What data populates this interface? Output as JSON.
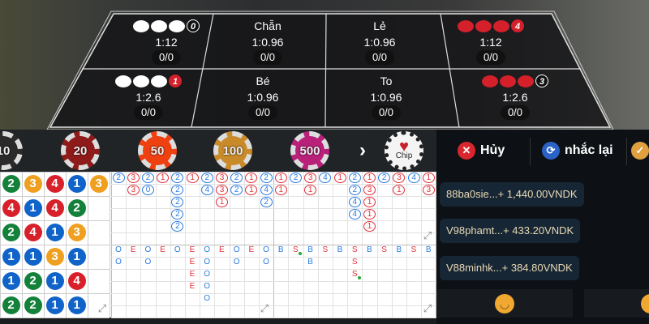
{
  "bet_table": {
    "top": [
      {
        "label": "",
        "dots": [
          "w",
          "w",
          "w"
        ],
        "num": "0",
        "num_color": "white",
        "odds": "1:12",
        "count": "0/0"
      },
      {
        "label": "Chẵn",
        "odds": "1:0.96",
        "count": "0/0"
      },
      {
        "label": "Lẻ",
        "odds": "1:0.96",
        "count": "0/0"
      },
      {
        "label": "",
        "dots": [
          "r",
          "r",
          "r"
        ],
        "num": "4",
        "num_color": "red",
        "odds": "1:12",
        "count": "0/0"
      }
    ],
    "bottom": [
      {
        "label": "",
        "dots": [
          "w",
          "w",
          "w"
        ],
        "num": "1",
        "num_color": "red",
        "odds": "1:2.6",
        "count": "0/0"
      },
      {
        "label": "Bé",
        "odds": "1:0.96",
        "count": "0/0"
      },
      {
        "label": "To",
        "odds": "1:0.96",
        "count": "0/0"
      },
      {
        "label": "",
        "dots": [
          "r",
          "r",
          "r"
        ],
        "num": "3",
        "num_color": "white",
        "odds": "1:2.6",
        "count": "0/0"
      }
    ]
  },
  "chips": [
    {
      "value": "10",
      "color": "#2a2a2a"
    },
    {
      "value": "20",
      "color": "#8e1a1a"
    },
    {
      "value": "50",
      "color": "#ee4010"
    },
    {
      "value": "100",
      "color": "#c98a2a"
    },
    {
      "value": "500",
      "color": "#b8207a"
    }
  ],
  "chip_menu": {
    "label": "Chip",
    "icon": "heart-chip-icon"
  },
  "colors": {
    "1": "#1063c8",
    "2": "#14813a",
    "3": "#f0a020",
    "4": "#d8202a",
    "blue": "#2a7be0",
    "red": "#e0303a"
  },
  "bead_road": [
    [
      "2",
      "3",
      "4",
      "1",
      "3"
    ],
    [
      "4",
      "1",
      "4",
      "2"
    ],
    [
      "2",
      "4",
      "1",
      "3"
    ],
    [
      "1",
      "1",
      "3",
      "1"
    ],
    [
      "1",
      "2",
      "1",
      "4"
    ],
    [
      "2",
      "2",
      "1",
      "1"
    ]
  ],
  "big_road": [
    {
      "c": "b",
      "v": [
        "2"
      ]
    },
    {
      "c": "r",
      "v": [
        "3",
        "3"
      ]
    },
    {
      "c": "b",
      "v": [
        "2",
        "0"
      ]
    },
    {
      "c": "r",
      "v": [
        "1"
      ]
    },
    {
      "c": "b",
      "v": [
        "2",
        "2",
        "2",
        "2",
        "2"
      ]
    },
    {
      "c": "r",
      "v": [
        "1"
      ]
    },
    {
      "c": "b",
      "v": [
        "2",
        "4"
      ]
    },
    {
      "c": "r",
      "v": [
        "3",
        "3",
        "1"
      ]
    },
    {
      "c": "b",
      "v": [
        "2",
        "2"
      ]
    },
    {
      "c": "r",
      "v": [
        "1",
        "1"
      ]
    },
    {
      "c": "b",
      "v": [
        "2",
        "4",
        "2"
      ]
    },
    {
      "c": "r",
      "v": [
        "1",
        "1"
      ]
    },
    {
      "c": "b",
      "v": [
        "2"
      ]
    },
    {
      "c": "r",
      "v": [
        "3",
        "1"
      ]
    },
    {
      "c": "b",
      "v": [
        "4"
      ]
    },
    {
      "c": "r",
      "v": [
        "1"
      ]
    },
    {
      "c": "b",
      "v": [
        "2",
        "2",
        "4",
        "4"
      ]
    },
    {
      "c": "r",
      "v": [
        "1",
        "3",
        "1",
        "1",
        "1"
      ]
    },
    {
      "c": "b",
      "v": [
        "2"
      ]
    },
    {
      "c": "r",
      "v": [
        "3",
        "1"
      ]
    },
    {
      "c": "b",
      "v": [
        "4"
      ]
    },
    {
      "c": "r",
      "v": [
        "1",
        "3"
      ]
    }
  ],
  "trend_road": [
    {
      "v": [
        "O",
        "O"
      ]
    },
    {
      "v": [
        "E"
      ]
    },
    {
      "v": [
        "O",
        "O"
      ]
    },
    {
      "v": [
        "E"
      ]
    },
    {
      "v": [
        "O"
      ]
    },
    {
      "v": [
        "E",
        "E",
        "E",
        "E"
      ]
    },
    {
      "v": [
        "O",
        "O",
        "O",
        "O",
        "O"
      ]
    },
    {
      "v": [
        "E"
      ]
    },
    {
      "v": [
        "O",
        "O"
      ]
    },
    {
      "v": [
        "E"
      ]
    },
    {
      "v": [
        "O",
        "O"
      ]
    },
    {
      "v": [
        "B"
      ]
    },
    {
      "v": [
        "S"
      ],
      "dot": 0
    },
    {
      "v": [
        "B",
        "B"
      ]
    },
    {
      "v": [
        "S"
      ]
    },
    {
      "v": [
        "B"
      ]
    },
    {
      "v": [
        "S",
        "S",
        "S"
      ],
      "dot": 2
    },
    {
      "v": [
        "B"
      ]
    },
    {
      "v": [
        "S"
      ]
    },
    {
      "v": [
        "B"
      ]
    },
    {
      "v": [
        "S"
      ]
    },
    {
      "v": [
        "B"
      ]
    }
  ],
  "actions": {
    "cancel": "Hủy",
    "repeat": "nhắc lại"
  },
  "messages": [
    "88ba0sie...+ 1,440.00VNDK",
    "V98phamt...+ 433.20VNDK",
    "V88minhk...+ 384.80VNDK"
  ]
}
